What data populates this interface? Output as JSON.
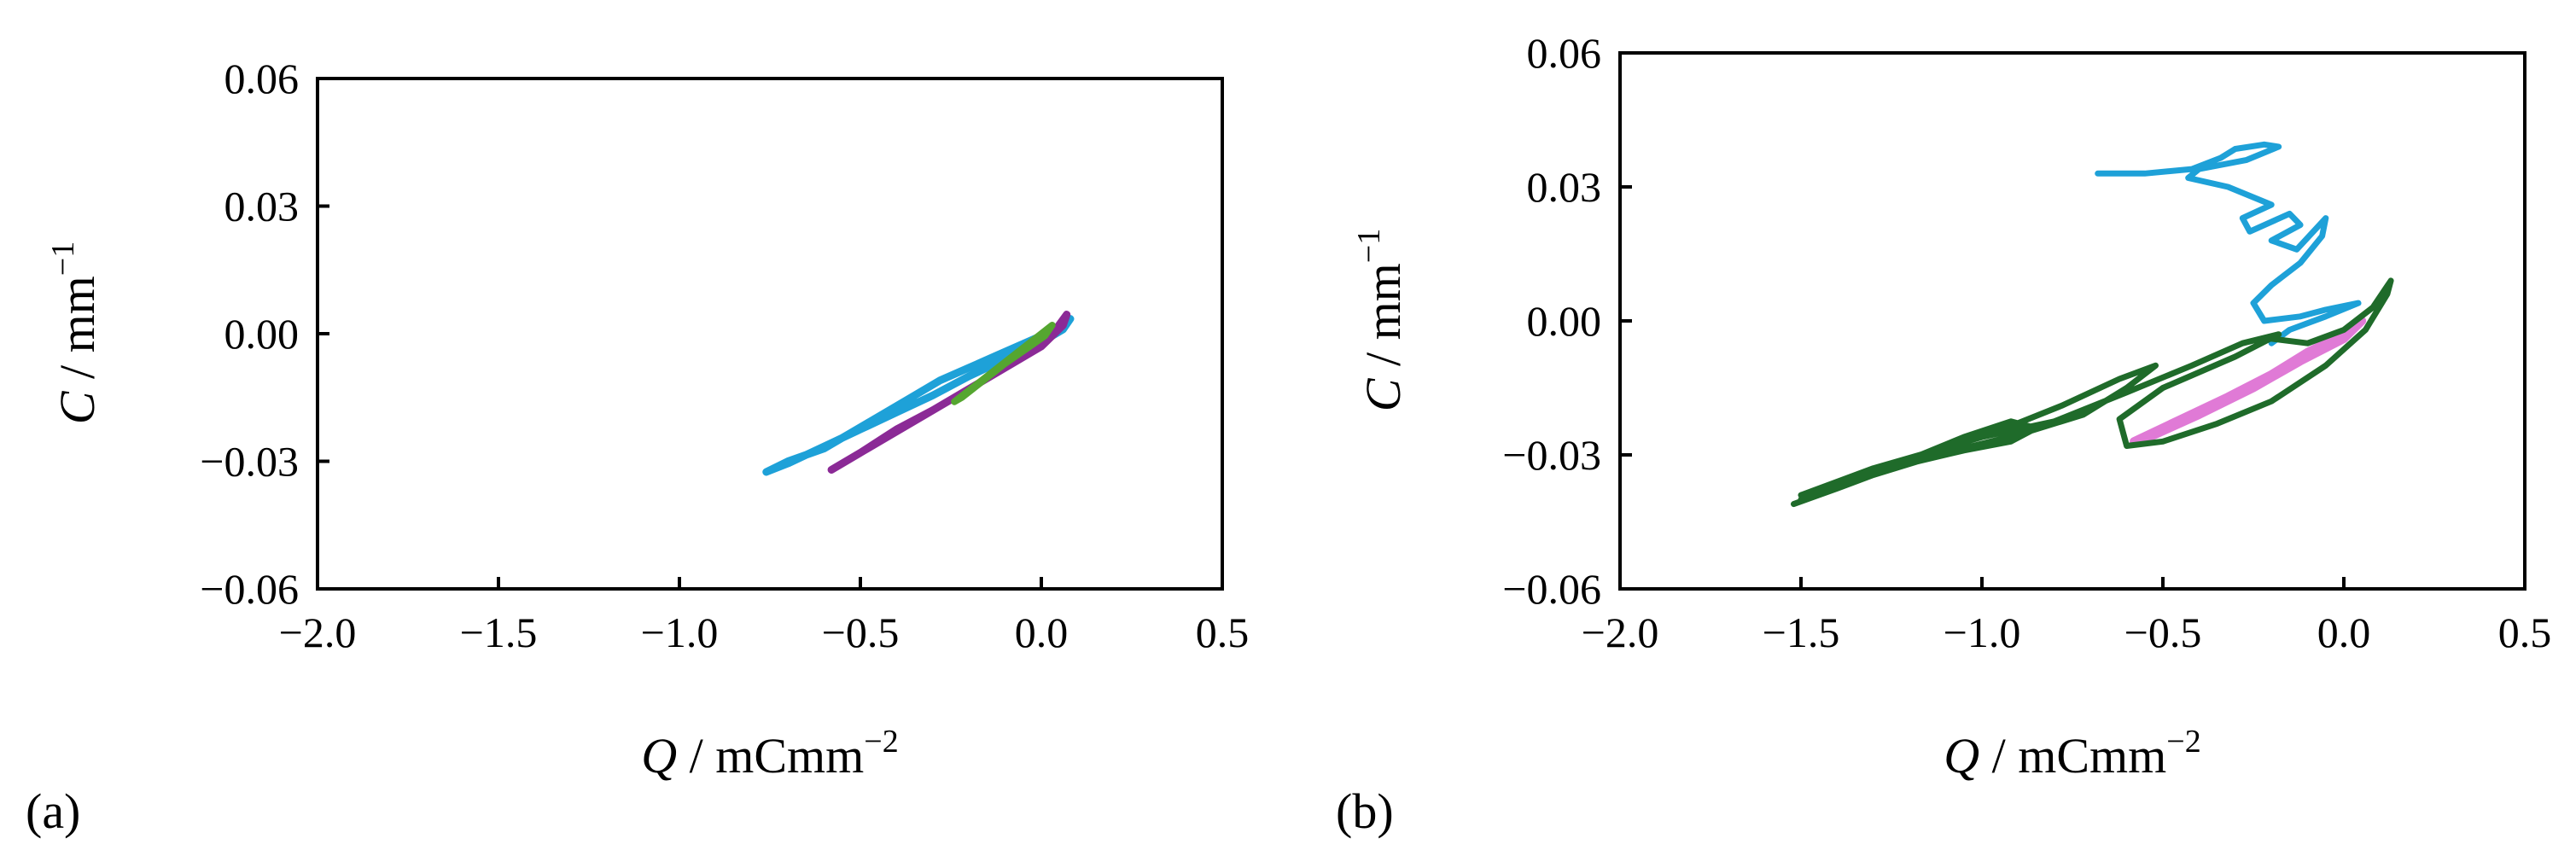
{
  "chart_data": [
    {
      "type": "line",
      "panel_label": "(a)",
      "xlabel": {
        "var": "Q",
        "unit": " / mCmm",
        "sup": "−2"
      },
      "ylabel": {
        "var": "C",
        "unit": " / mm",
        "sup": "−1"
      },
      "xlim": [
        -2.0,
        0.5
      ],
      "ylim": [
        -0.06,
        0.06
      ],
      "xticks": [
        -2.0,
        -1.5,
        -1.0,
        -0.5,
        0.0,
        0.5
      ],
      "xtick_labels": [
        "−2.0",
        "−1.5",
        "−1.0",
        "−0.5",
        "0.0",
        "0.5"
      ],
      "yticks": [
        -0.06,
        -0.03,
        0.0,
        0.03,
        0.06
      ],
      "ytick_labels": [
        "−0.06",
        "−0.03",
        "0.00",
        "0.03",
        "0.06"
      ],
      "series": [
        {
          "color": "#1ea1d8",
          "width": 9,
          "points": [
            [
              -0.76,
              -0.0325
            ],
            [
              -0.7,
              -0.03
            ],
            [
              -0.6,
              -0.027
            ],
            [
              -0.52,
              -0.023
            ],
            [
              -0.44,
              -0.019
            ],
            [
              -0.36,
              -0.015
            ],
            [
              -0.28,
              -0.011
            ],
            [
              -0.2,
              -0.008
            ],
            [
              -0.12,
              -0.005
            ],
            [
              -0.04,
              -0.002
            ],
            [
              0.04,
              0.001
            ],
            [
              0.08,
              0.0035
            ],
            [
              0.06,
              0.001
            ],
            [
              0.0,
              -0.002
            ],
            [
              -0.1,
              -0.006
            ],
            [
              -0.2,
              -0.01
            ],
            [
              -0.3,
              -0.0145
            ],
            [
              -0.4,
              -0.0185
            ],
            [
              -0.5,
              -0.0225
            ],
            [
              -0.6,
              -0.0265
            ],
            [
              -0.7,
              -0.0305
            ],
            [
              -0.76,
              -0.0325
            ]
          ]
        },
        {
          "color": "#8b2a96",
          "width": 9,
          "points": [
            [
              -0.58,
              -0.032
            ],
            [
              -0.48,
              -0.027
            ],
            [
              -0.38,
              -0.022
            ],
            [
              -0.28,
              -0.017
            ],
            [
              -0.18,
              -0.012
            ],
            [
              -0.08,
              -0.007
            ],
            [
              0.0,
              -0.003
            ],
            [
              0.06,
              0.002
            ],
            [
              0.07,
              0.0045
            ],
            [
              0.04,
              0.001
            ],
            [
              -0.02,
              -0.003
            ],
            [
              -0.1,
              -0.008
            ],
            [
              -0.2,
              -0.013
            ],
            [
              -0.3,
              -0.018
            ],
            [
              -0.4,
              -0.0225
            ],
            [
              -0.5,
              -0.028
            ],
            [
              -0.58,
              -0.032
            ]
          ]
        },
        {
          "color": "#55a630",
          "width": 8,
          "points": [
            [
              -0.24,
              -0.016
            ],
            [
              -0.18,
              -0.012
            ],
            [
              -0.12,
              -0.008
            ],
            [
              -0.06,
              -0.004
            ],
            [
              0.0,
              0.0
            ],
            [
              0.03,
              0.002
            ],
            [
              0.01,
              -0.0005
            ],
            [
              -0.04,
              -0.0035
            ],
            [
              -0.1,
              -0.007
            ],
            [
              -0.16,
              -0.011
            ],
            [
              -0.22,
              -0.015
            ],
            [
              -0.24,
              -0.016
            ]
          ]
        }
      ]
    },
    {
      "type": "line",
      "panel_label": "(b)",
      "xlabel": {
        "var": "Q",
        "unit": " / mCmm",
        "sup": "−2"
      },
      "ylabel": {
        "var": "C",
        "unit": " / mm",
        "sup": "−1"
      },
      "xlim": [
        -2.0,
        0.5
      ],
      "ylim": [
        -0.06,
        0.06
      ],
      "xticks": [
        -2.0,
        -1.5,
        -1.0,
        -0.5,
        0.0,
        0.5
      ],
      "xtick_labels": [
        "−2.0",
        "−1.5",
        "−1.0",
        "−0.5",
        "0.0",
        "0.5"
      ],
      "yticks": [
        -0.06,
        -0.03,
        0.0,
        0.03,
        0.06
      ],
      "ytick_labels": [
        "−0.06",
        "−0.03",
        "0.00",
        "0.03",
        "0.06"
      ],
      "series": [
        {
          "color": "#e07ad6",
          "width": 10,
          "points": [
            [
              -0.58,
              -0.027
            ],
            [
              -0.45,
              -0.022
            ],
            [
              -0.32,
              -0.017
            ],
            [
              -0.2,
              -0.012
            ],
            [
              -0.1,
              -0.007
            ],
            [
              0.0,
              -0.003
            ],
            [
              0.05,
              0.0
            ],
            [
              0.0,
              -0.004
            ],
            [
              -0.12,
              -0.009
            ],
            [
              -0.25,
              -0.015
            ],
            [
              -0.4,
              -0.021
            ],
            [
              -0.55,
              -0.0265
            ],
            [
              -0.58,
              -0.027
            ]
          ]
        },
        {
          "color": "#1ea1d8",
          "width": 7,
          "points": [
            [
              -0.68,
              0.033
            ],
            [
              -0.55,
              0.033
            ],
            [
              -0.42,
              0.034
            ],
            [
              -0.34,
              0.0365
            ],
            [
              -0.3,
              0.0385
            ],
            [
              -0.22,
              0.0395
            ],
            [
              -0.18,
              0.039
            ],
            [
              -0.27,
              0.036
            ],
            [
              -0.4,
              0.034
            ],
            [
              -0.43,
              0.032
            ],
            [
              -0.32,
              0.03
            ],
            [
              -0.2,
              0.026
            ],
            [
              -0.28,
              0.023
            ],
            [
              -0.26,
              0.02
            ],
            [
              -0.15,
              0.024
            ],
            [
              -0.12,
              0.0215
            ],
            [
              -0.2,
              0.018
            ],
            [
              -0.13,
              0.016
            ],
            [
              -0.05,
              0.023
            ],
            [
              -0.06,
              0.019
            ],
            [
              -0.12,
              0.013
            ],
            [
              -0.2,
              0.008
            ],
            [
              -0.25,
              0.004
            ],
            [
              -0.22,
              0.0
            ],
            [
              -0.12,
              0.001
            ],
            [
              -0.05,
              0.0025
            ],
            [
              0.04,
              0.004
            ],
            [
              -0.05,
              0.001
            ],
            [
              -0.15,
              -0.002
            ],
            [
              -0.2,
              -0.005
            ]
          ]
        },
        {
          "color": "#1f6b2a",
          "width": 7,
          "points": [
            [
              -1.52,
              -0.041
            ],
            [
              -1.4,
              -0.0375
            ],
            [
              -1.3,
              -0.0345
            ],
            [
              -1.18,
              -0.0315
            ],
            [
              -1.05,
              -0.029
            ],
            [
              -0.92,
              -0.027
            ],
            [
              -0.85,
              -0.024
            ],
            [
              -0.92,
              -0.0225
            ],
            [
              -1.05,
              -0.026
            ],
            [
              -1.2,
              -0.031
            ],
            [
              -1.35,
              -0.036
            ],
            [
              -1.5,
              -0.04
            ],
            [
              -1.38,
              -0.036
            ],
            [
              -1.25,
              -0.033
            ],
            [
              -1.1,
              -0.0295
            ],
            [
              -0.9,
              -0.0255
            ],
            [
              -0.72,
              -0.021
            ],
            [
              -0.6,
              -0.015
            ],
            [
              -0.52,
              -0.01
            ],
            [
              -0.62,
              -0.013
            ],
            [
              -0.78,
              -0.019
            ],
            [
              -0.95,
              -0.0245
            ],
            [
              -1.15,
              -0.03
            ],
            [
              -1.35,
              -0.035
            ],
            [
              -1.5,
              -0.039
            ],
            [
              -1.3,
              -0.033
            ],
            [
              -1.0,
              -0.026
            ],
            [
              -0.8,
              -0.0225
            ],
            [
              -0.6,
              -0.016
            ],
            [
              -0.42,
              -0.01
            ],
            [
              -0.28,
              -0.005
            ],
            [
              -0.18,
              -0.003
            ],
            [
              -0.3,
              -0.008
            ],
            [
              -0.5,
              -0.015
            ],
            [
              -0.62,
              -0.022
            ],
            [
              -0.6,
              -0.028
            ],
            [
              -0.5,
              -0.027
            ],
            [
              -0.35,
              -0.023
            ],
            [
              -0.2,
              -0.018
            ],
            [
              -0.05,
              -0.01
            ],
            [
              0.06,
              -0.002
            ],
            [
              0.12,
              0.006
            ],
            [
              0.13,
              0.009
            ],
            [
              0.08,
              0.003
            ],
            [
              0.0,
              -0.002
            ],
            [
              -0.1,
              -0.005
            ],
            [
              -0.2,
              -0.004
            ]
          ]
        }
      ]
    }
  ]
}
